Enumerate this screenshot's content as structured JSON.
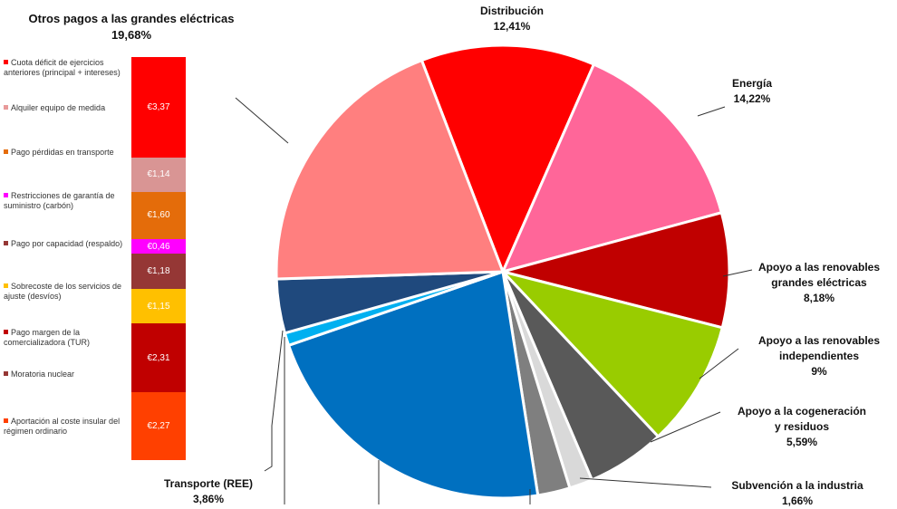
{
  "left_panel": {
    "title_line1": "Otros pagos a las grandes eléctricas",
    "title_line2": "19,68%"
  },
  "legend": [
    {
      "text": "Cuota déficit de ejercicios anteriores (principal + intereses)",
      "color": "#ff0000"
    },
    {
      "text": "Alquiler equipo de medida",
      "color": "#e89a9a"
    },
    {
      "text": "Pago pérdidas en transporte",
      "color": "#e46c0a"
    },
    {
      "text": "Restricciones de garantía de suministro (carbón)",
      "color": "#ff00ff"
    },
    {
      "text": "Pago por capacidad (respaldo)",
      "color": "#953735"
    },
    {
      "text": "Sobrecoste de los servicios de ajuste (desvíos)",
      "color": "#ffc000"
    },
    {
      "text": "Pago margen de la comercializadora (TUR)",
      "color": "#c00000"
    },
    {
      "text": "Moratoria nuclear",
      "color": "#953735"
    },
    {
      "text": "Aportación al coste insular del régimen ordinario",
      "color": "#ff4000"
    }
  ],
  "chart_data": [
    {
      "type": "pie",
      "title": "",
      "slices": [
        {
          "label": "Distribución",
          "value": 12.41,
          "display": "12,41%",
          "color": "#ff0000"
        },
        {
          "label": "Energía",
          "value": 14.22,
          "display": "14,22%",
          "color": "#ff6699"
        },
        {
          "label": "Apoyo a las renovables grandes eléctricas",
          "value": 8.18,
          "display": "8,18%",
          "color": "#c00000"
        },
        {
          "label": "Apoyo a las renovables independientes",
          "value": 9,
          "display": "9%",
          "color": "#99cc00"
        },
        {
          "label": "Apoyo a la cogeneración y residuos",
          "value": 5.59,
          "display": "5,59%",
          "color": "#595959"
        },
        {
          "label": "Subvención a la industria",
          "value": 1.66,
          "display": "1,66%",
          "color": "#d9d9d9"
        },
        {
          "label": "",
          "value": 2.3,
          "display": "",
          "color": "#7f7f7f"
        },
        {
          "label": "",
          "value": 22.2,
          "display": "",
          "color": "#0070c0"
        },
        {
          "label": "",
          "value": 0.9,
          "display": "",
          "color": "#00b0f0"
        },
        {
          "label": "Transporte (REE)",
          "value": 3.86,
          "display": "3,86%",
          "color": "#1f497d"
        },
        {
          "label": "Otros pagos a las grandes eléctricas",
          "value": 19.68,
          "display": "19,68%",
          "color": "#ff7f7f"
        }
      ]
    },
    {
      "type": "bar",
      "stacked": true,
      "title": "Otros pagos a las grandes eléctricas",
      "unit": "€",
      "segments": [
        {
          "label": "€3,37",
          "value": 3.37,
          "color": "#ff0000"
        },
        {
          "label": "€1,14",
          "value": 1.14,
          "color": "#d99594"
        },
        {
          "label": "€1,60",
          "value": 1.6,
          "color": "#e46c0a"
        },
        {
          "label": "€0,46",
          "value": 0.46,
          "color": "#ff00ff"
        },
        {
          "label": "€1,18",
          "value": 1.18,
          "color": "#953735"
        },
        {
          "label": "€1,15",
          "value": 1.15,
          "color": "#ffc000"
        },
        {
          "label": "€2,31",
          "value": 2.31,
          "color": "#c00000"
        },
        {
          "label": "",
          "value": 0.0,
          "color": "#953735"
        },
        {
          "label": "€2,27",
          "value": 2.27,
          "color": "#ff4000"
        }
      ]
    }
  ],
  "pie_labels": {
    "distribucion": {
      "name": "Distribución",
      "pct": "12,41%"
    },
    "energia": {
      "name": "Energía",
      "pct": "14,22%"
    },
    "ren_grandes": {
      "line1": "Apoyo a las renovables",
      "line2": "grandes eléctricas",
      "pct": "8,18%"
    },
    "ren_indep": {
      "line1": "Apoyo a las renovables",
      "line2": "independientes",
      "pct": "9%"
    },
    "cogen": {
      "line1": "Apoyo a la cogeneración",
      "line2": "y residuos",
      "pct": "5,59%"
    },
    "industria": {
      "name": "Subvención a la industria",
      "pct": "1,66%"
    },
    "transporte": {
      "name": "Transporte (REE)",
      "pct": "3,86%"
    }
  }
}
